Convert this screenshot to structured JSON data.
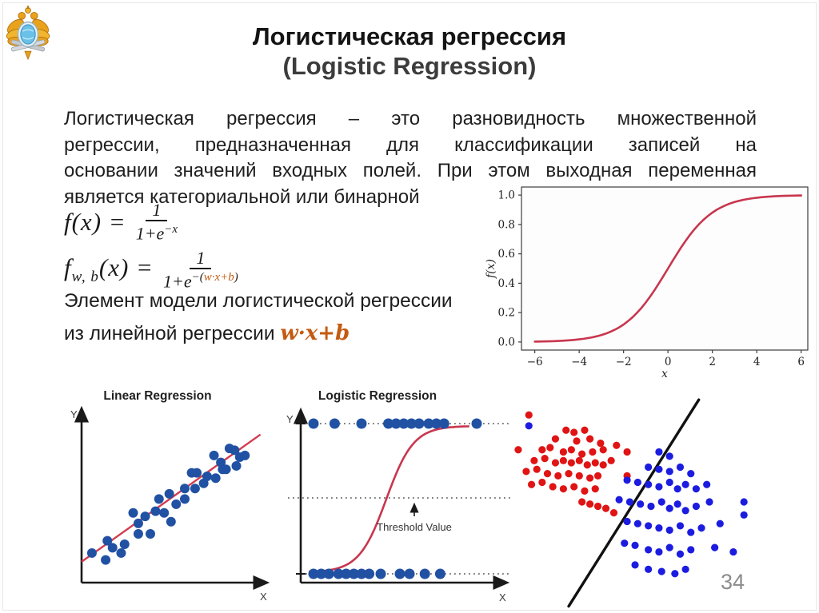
{
  "page": {
    "number": "34"
  },
  "title": {
    "line1": "Логистическая регрессия",
    "line2": "(Logistic Regression)"
  },
  "intro": {
    "lines": [
      "Логистическая регрессия – это разновидность множественной",
      "регрессии, предназначенная для классификации записей на",
      "основании значений входных полей. При этом выходная переменная",
      "является категориальной или бинарной"
    ]
  },
  "formulas": {
    "f1": {
      "lhs": "f(x) =",
      "numerator": "1",
      "den_base": "1+e",
      "den_exp": "−x"
    },
    "f2": {
      "lhs_f": "f",
      "lhs_sub": "w, b",
      "lhs_rest": "(x) =",
      "numerator": "1",
      "den_base": "1+e",
      "exp_prefix": "−(",
      "exp_highlight": "w·x+b",
      "exp_suffix": ")"
    }
  },
  "note": {
    "line1": "Элемент модели логистической регрессии",
    "line2_prefix": "из линейной регрессии ",
    "line2_highlight": "w·x+b"
  },
  "colors": {
    "accent_orange": "#c55a11",
    "sigmoid_red": "#c8364e",
    "fit_line_red": "#d23c50",
    "dot_blue": "#2151a3",
    "scatter_red": "#e01414",
    "scatter_blue": "#1c1ce0",
    "boundary_black": "#111111",
    "page_gray": "#8c8c8c"
  },
  "chart_data": [
    {
      "id": "sigmoid-figure",
      "type": "line",
      "title": "",
      "xlabel": "x",
      "ylabel": "f(x)",
      "function": "f(x) = 1/(1+e^(-x))",
      "x_range": [
        -6,
        6
      ],
      "x_tick_values": [
        -6,
        -4,
        -2,
        0,
        2,
        4,
        6
      ],
      "x_tick_labels": [
        "−6",
        "−4",
        "−2",
        "0",
        "2",
        "4",
        "6"
      ],
      "y_tick_values": [
        0.0,
        0.2,
        0.4,
        0.6,
        0.8,
        1.0
      ],
      "y_tick_labels": [
        "0.0",
        "0.2",
        "0.4",
        "0.6",
        "0.8",
        "1.0"
      ],
      "xlim": [
        -6.6,
        6.3
      ],
      "ylim": [
        -0.055,
        1.055
      ],
      "grid": false,
      "line_color": "#c8364e"
    },
    {
      "id": "linear-regression-chart",
      "type": "scatter",
      "title": "Linear Regression",
      "xlabel": "X",
      "ylabel": "Y",
      "dot_color": "#2151a3",
      "line_color": "#d23c50",
      "fit_line_pct": [
        [
          0,
          88
        ],
        [
          104,
          15
        ]
      ],
      "points_pct": [
        [
          6,
          83
        ],
        [
          14,
          87
        ],
        [
          15,
          76
        ],
        [
          18,
          80
        ],
        [
          23,
          83
        ],
        [
          25,
          78
        ],
        [
          30,
          60
        ],
        [
          33,
          72
        ],
        [
          33,
          66
        ],
        [
          37,
          62
        ],
        [
          40,
          72
        ],
        [
          43,
          59
        ],
        [
          48,
          60
        ],
        [
          52,
          65
        ],
        [
          45,
          52
        ],
        [
          51,
          49
        ],
        [
          55,
          55
        ],
        [
          60,
          46
        ],
        [
          64,
          37
        ],
        [
          67,
          37
        ],
        [
          60,
          52
        ],
        [
          66,
          46
        ],
        [
          71,
          43
        ],
        [
          73,
          39
        ],
        [
          77,
          27
        ],
        [
          81,
          31
        ],
        [
          82,
          35
        ],
        [
          84,
          35
        ],
        [
          78,
          40
        ],
        [
          86,
          23
        ],
        [
          89,
          24
        ],
        [
          92,
          28
        ],
        [
          95,
          27
        ],
        [
          90,
          33
        ]
      ]
    },
    {
      "id": "logistic-regression-chart",
      "type": "diagram",
      "title": "Logistic Regression",
      "xlabel": "X",
      "ylabel": "Y",
      "threshold_label": "Threshold Value",
      "dot_color": "#2151a3",
      "curve_color": "#c8364e",
      "class1_y": 1,
      "class0_y": 0,
      "top_dots_x_pct": [
        5,
        16,
        30,
        44,
        48,
        52,
        56,
        60,
        65,
        69,
        73,
        90
      ],
      "bottom_dots_x_pct": [
        5,
        9,
        13,
        18,
        22,
        26,
        30,
        34,
        40,
        50,
        55,
        63,
        71
      ],
      "threshold_y_pct": 51
    },
    {
      "id": "classification-scatter-chart",
      "type": "scatter",
      "boundary_line_pct": [
        [
          22,
          98
        ],
        [
          71,
          3
        ]
      ],
      "series": [
        {
          "name": "class-red",
          "color": "#e01414",
          "points_pct": [
            [
              7,
              10
            ],
            [
              3,
              26
            ],
            [
              21,
              17
            ],
            [
              24,
              18
            ],
            [
              28,
              17
            ],
            [
              17,
              21
            ],
            [
              25,
              22
            ],
            [
              30,
              21
            ],
            [
              34,
              23
            ],
            [
              40,
              24
            ],
            [
              12,
              26
            ],
            [
              15,
              25
            ],
            [
              20,
              27
            ],
            [
              23,
              26
            ],
            [
              27,
              28
            ],
            [
              31,
              27
            ],
            [
              35,
              26
            ],
            [
              44,
              27
            ],
            [
              9,
              31
            ],
            [
              13,
              30
            ],
            [
              17,
              32
            ],
            [
              20,
              31
            ],
            [
              23,
              32
            ],
            [
              26,
              31
            ],
            [
              29,
              33
            ],
            [
              32,
              32
            ],
            [
              35,
              33
            ],
            [
              38,
              31
            ],
            [
              6,
              36
            ],
            [
              10,
              35
            ],
            [
              14,
              37
            ],
            [
              18,
              38
            ],
            [
              22,
              37
            ],
            [
              26,
              38
            ],
            [
              30,
              39
            ],
            [
              33,
              38
            ],
            [
              44,
              38
            ],
            [
              8,
              42
            ],
            [
              12,
              41
            ],
            [
              16,
              43
            ],
            [
              20,
              44
            ],
            [
              24,
              43
            ],
            [
              28,
              45
            ],
            [
              32,
              44
            ],
            [
              27,
              50
            ],
            [
              30,
              51
            ],
            [
              33,
              52
            ],
            [
              36,
              53
            ],
            [
              39,
              55
            ]
          ]
        },
        {
          "name": "class-blue",
          "color": "#1c1ce0",
          "points_pct": [
            [
              7,
              15
            ],
            [
              56,
              27
            ],
            [
              60,
              29
            ],
            [
              52,
              34
            ],
            [
              56,
              35
            ],
            [
              60,
              36
            ],
            [
              64,
              34
            ],
            [
              68,
              37
            ],
            [
              44,
              40
            ],
            [
              48,
              41
            ],
            [
              52,
              42
            ],
            [
              56,
              43
            ],
            [
              60,
              41
            ],
            [
              63,
              44
            ],
            [
              66,
              42
            ],
            [
              70,
              44
            ],
            [
              74,
              42
            ],
            [
              41,
              49
            ],
            [
              45,
              50
            ],
            [
              49,
              51
            ],
            [
              53,
              52
            ],
            [
              57,
              50
            ],
            [
              60,
              53
            ],
            [
              63,
              51
            ],
            [
              66,
              54
            ],
            [
              70,
              52
            ],
            [
              75,
              50
            ],
            [
              88,
              50
            ],
            [
              88,
              56
            ],
            [
              44,
              59
            ],
            [
              48,
              60
            ],
            [
              52,
              61
            ],
            [
              56,
              62
            ],
            [
              60,
              63
            ],
            [
              64,
              61
            ],
            [
              68,
              64
            ],
            [
              72,
              62
            ],
            [
              79,
              60
            ],
            [
              43,
              69
            ],
            [
              47,
              70
            ],
            [
              52,
              72
            ],
            [
              56,
              73
            ],
            [
              60,
              71
            ],
            [
              64,
              74
            ],
            [
              68,
              72
            ],
            [
              77,
              71
            ],
            [
              84,
              73
            ],
            [
              47,
              79
            ],
            [
              52,
              81
            ],
            [
              57,
              82
            ],
            [
              62,
              83
            ],
            [
              66,
              81
            ]
          ]
        }
      ]
    }
  ]
}
